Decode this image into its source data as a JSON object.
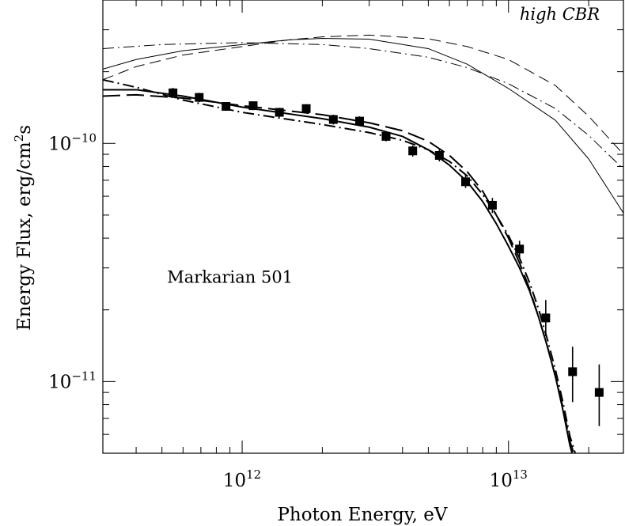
{
  "chart_data": {
    "type": "scatter",
    "title": "",
    "xlabel": "Photon Energy, eV",
    "ylabel_parts": [
      "Energy Flux, erg/cm",
      "2",
      "s"
    ],
    "xscale": "log",
    "yscale": "log",
    "xlim": [
      300000000000.0,
      27000000000000.0
    ],
    "ylim": [
      5e-12,
      4e-10
    ],
    "xticks": [
      {
        "value": 1000000000000.0,
        "base": "10",
        "exp": "12"
      },
      {
        "value": 10000000000000.0,
        "base": "10",
        "exp": "13"
      }
    ],
    "yticks": [
      {
        "value": 1e-11,
        "base": "10",
        "exp": "−11"
      },
      {
        "value": 1e-10,
        "base": "10",
        "exp": "−10"
      }
    ],
    "annotations": [
      {
        "text": "high CBR",
        "italic": true,
        "x": 22000000000000.0,
        "y": 3.3e-10,
        "anchor": "end"
      },
      {
        "text": "Markarian 501",
        "italic": false,
        "x": 900000000000.0,
        "y": 2.6e-11,
        "anchor": "middle"
      }
    ],
    "grid": false,
    "legend": "none",
    "data_points": [
      {
        "x": 550000000000.0,
        "y": 1.63e-10,
        "err": [
          1.55e-10,
          1.71e-10
        ]
      },
      {
        "x": 690000000000.0,
        "y": 1.56e-10,
        "err": [
          1.49e-10,
          1.63e-10
        ]
      },
      {
        "x": 870000000000.0,
        "y": 1.43e-10,
        "err": [
          1.37e-10,
          1.49e-10
        ]
      },
      {
        "x": 1100000000000.0,
        "y": 1.44e-10,
        "err": [
          1.38e-10,
          1.5e-10
        ]
      },
      {
        "x": 1380000000000.0,
        "y": 1.35e-10,
        "err": [
          1.29e-10,
          1.41e-10
        ]
      },
      {
        "x": 1740000000000.0,
        "y": 1.4e-10,
        "err": [
          1.34e-10,
          1.46e-10
        ]
      },
      {
        "x": 2200000000000.0,
        "y": 1.26e-10,
        "err": [
          1.2e-10,
          1.32e-10
        ]
      },
      {
        "x": 2760000000000.0,
        "y": 1.24e-10,
        "err": [
          1.18e-10,
          1.3e-10
        ]
      },
      {
        "x": 3470000000000.0,
        "y": 1.07e-10,
        "err": [
          1.02e-10,
          1.12e-10
        ]
      },
      {
        "x": 4370000000000.0,
        "y": 9.3e-11,
        "err": [
          8.8e-11,
          9.8e-11
        ]
      },
      {
        "x": 5500000000000.0,
        "y": 8.9e-11,
        "err": [
          8.4e-11,
          9.4e-11
        ]
      },
      {
        "x": 6900000000000.0,
        "y": 6.9e-11,
        "err": [
          6.5e-11,
          7.4e-11
        ]
      },
      {
        "x": 8700000000000.0,
        "y": 5.5e-11,
        "err": [
          5.1e-11,
          5.9e-11
        ]
      },
      {
        "x": 11000000000000.0,
        "y": 3.6e-11,
        "err": [
          3.3e-11,
          3.9e-11
        ]
      },
      {
        "x": 13800000000000.0,
        "y": 1.85e-11,
        "err": [
          1.55e-11,
          2.2e-11
        ]
      },
      {
        "x": 17400000000000.0,
        "y": 1.1e-11,
        "err": [
          8.2e-12,
          1.4e-11
        ]
      },
      {
        "x": 21900000000000.0,
        "y": 9e-12,
        "err": [
          6.5e-12,
          1.18e-11
        ]
      }
    ],
    "series": [
      {
        "style": "solid",
        "width": 1.0,
        "points": [
          [
            300000000000.0,
            2.05e-10
          ],
          [
            400000000000.0,
            2.25e-10
          ],
          [
            600000000000.0,
            2.45e-10
          ],
          [
            1000000000000.0,
            2.6e-10
          ],
          [
            1500000000000.0,
            2.72e-10
          ],
          [
            2000000000000.0,
            2.76e-10
          ],
          [
            3000000000000.0,
            2.74e-10
          ],
          [
            5000000000000.0,
            2.5e-10
          ],
          [
            7000000000000.0,
            2.15e-10
          ],
          [
            10000000000000.0,
            1.7e-10
          ],
          [
            15000000000000.0,
            1.25e-10
          ],
          [
            20000000000000.0,
            8.6e-11
          ],
          [
            27000000000000.0,
            5.1e-11
          ]
        ]
      },
      {
        "style": "dashed",
        "width": 1.0,
        "points": [
          [
            300000000000.0,
            1.85e-10
          ],
          [
            400000000000.0,
            2.1e-10
          ],
          [
            600000000000.0,
            2.35e-10
          ],
          [
            1000000000000.0,
            2.55e-10
          ],
          [
            1500000000000.0,
            2.72e-10
          ],
          [
            2000000000000.0,
            2.8e-10
          ],
          [
            3000000000000.0,
            2.85e-10
          ],
          [
            5000000000000.0,
            2.75e-10
          ],
          [
            7000000000000.0,
            2.55e-10
          ],
          [
            10000000000000.0,
            2.25e-10
          ],
          [
            15000000000000.0,
            1.75e-10
          ],
          [
            20000000000000.0,
            1.3e-10
          ],
          [
            27000000000000.0,
            9e-11
          ]
        ]
      },
      {
        "style": "dashdot",
        "width": 1.0,
        "points": [
          [
            300000000000.0,
            2.5e-10
          ],
          [
            500000000000.0,
            2.6e-10
          ],
          [
            1000000000000.0,
            2.65e-10
          ],
          [
            2000000000000.0,
            2.6e-10
          ],
          [
            3000000000000.0,
            2.5e-10
          ],
          [
            5000000000000.0,
            2.3e-10
          ],
          [
            7000000000000.0,
            2.08e-10
          ],
          [
            10000000000000.0,
            1.78e-10
          ],
          [
            15000000000000.0,
            1.4e-10
          ],
          [
            20000000000000.0,
            1.08e-10
          ],
          [
            27000000000000.0,
            7.8e-11
          ]
        ]
      },
      {
        "style": "solid",
        "width": 2.0,
        "points": [
          [
            300000000000.0,
            1.68e-10
          ],
          [
            400000000000.0,
            1.68e-10
          ],
          [
            600000000000.0,
            1.58e-10
          ],
          [
            1000000000000.0,
            1.42e-10
          ],
          [
            2000000000000.0,
            1.27e-10
          ],
          [
            3000000000000.0,
            1.17e-10
          ],
          [
            4000000000000.0,
            1.07e-10
          ],
          [
            5000000000000.0,
            9.4e-11
          ],
          [
            6000000000000.0,
            8.1e-11
          ],
          [
            7000000000000.0,
            6.9e-11
          ],
          [
            8000000000000.0,
            5.7e-11
          ],
          [
            9000000000000.0,
            4.6e-11
          ],
          [
            10000000000000.0,
            3.7e-11
          ],
          [
            11000000000000.0,
            3e-11
          ],
          [
            12000000000000.0,
            2.4e-11
          ],
          [
            13000000000000.0,
            1.85e-11
          ],
          [
            14000000000000.0,
            1.4e-11
          ],
          [
            15000000000000.0,
            1.05e-11
          ],
          [
            16000000000000.0,
            7.6e-12
          ],
          [
            17000000000000.0,
            5.4e-12
          ],
          [
            17500000000000.0,
            4.8e-12
          ]
        ]
      },
      {
        "style": "longdash",
        "width": 2.0,
        "points": [
          [
            300000000000.0,
            1.58e-10
          ],
          [
            400000000000.0,
            1.6e-10
          ],
          [
            600000000000.0,
            1.55e-10
          ],
          [
            1000000000000.0,
            1.44e-10
          ],
          [
            2000000000000.0,
            1.32e-10
          ],
          [
            3000000000000.0,
            1.22e-10
          ],
          [
            4000000000000.0,
            1.13e-10
          ],
          [
            5000000000000.0,
            1.02e-10
          ],
          [
            6000000000000.0,
            8.9e-11
          ],
          [
            7000000000000.0,
            7.6e-11
          ],
          [
            8000000000000.0,
            6.3e-11
          ],
          [
            9000000000000.0,
            5e-11
          ],
          [
            10000000000000.0,
            4e-11
          ],
          [
            11000000000000.0,
            3.15e-11
          ],
          [
            12000000000000.0,
            2.45e-11
          ],
          [
            13000000000000.0,
            1.85e-11
          ],
          [
            14000000000000.0,
            1.4e-11
          ],
          [
            15000000000000.0,
            1.05e-11
          ],
          [
            16000000000000.0,
            7.8e-12
          ],
          [
            17000000000000.0,
            5.6e-12
          ],
          [
            17800000000000.0,
            4.8e-12
          ]
        ]
      },
      {
        "style": "dashdot",
        "width": 2.0,
        "points": [
          [
            300000000000.0,
            1.85e-10
          ],
          [
            400000000000.0,
            1.72e-10
          ],
          [
            600000000000.0,
            1.52e-10
          ],
          [
            1000000000000.0,
            1.35e-10
          ],
          [
            2000000000000.0,
            1.2e-10
          ],
          [
            3000000000000.0,
            1.11e-10
          ],
          [
            4000000000000.0,
            1.03e-10
          ],
          [
            5000000000000.0,
            9.4e-11
          ],
          [
            6000000000000.0,
            8.4e-11
          ],
          [
            7000000000000.0,
            7.3e-11
          ],
          [
            8000000000000.0,
            6.1e-11
          ],
          [
            9000000000000.0,
            5e-11
          ],
          [
            10000000000000.0,
            4.1e-11
          ],
          [
            11000000000000.0,
            3.3e-11
          ],
          [
            12000000000000.0,
            2.6e-11
          ],
          [
            13000000000000.0,
            2e-11
          ],
          [
            14000000000000.0,
            1.5e-11
          ],
          [
            15000000000000.0,
            1.12e-11
          ],
          [
            16000000000000.0,
            8.2e-12
          ],
          [
            17000000000000.0,
            5.9e-12
          ],
          [
            18000000000000.0,
            4.8e-12
          ]
        ]
      }
    ]
  }
}
